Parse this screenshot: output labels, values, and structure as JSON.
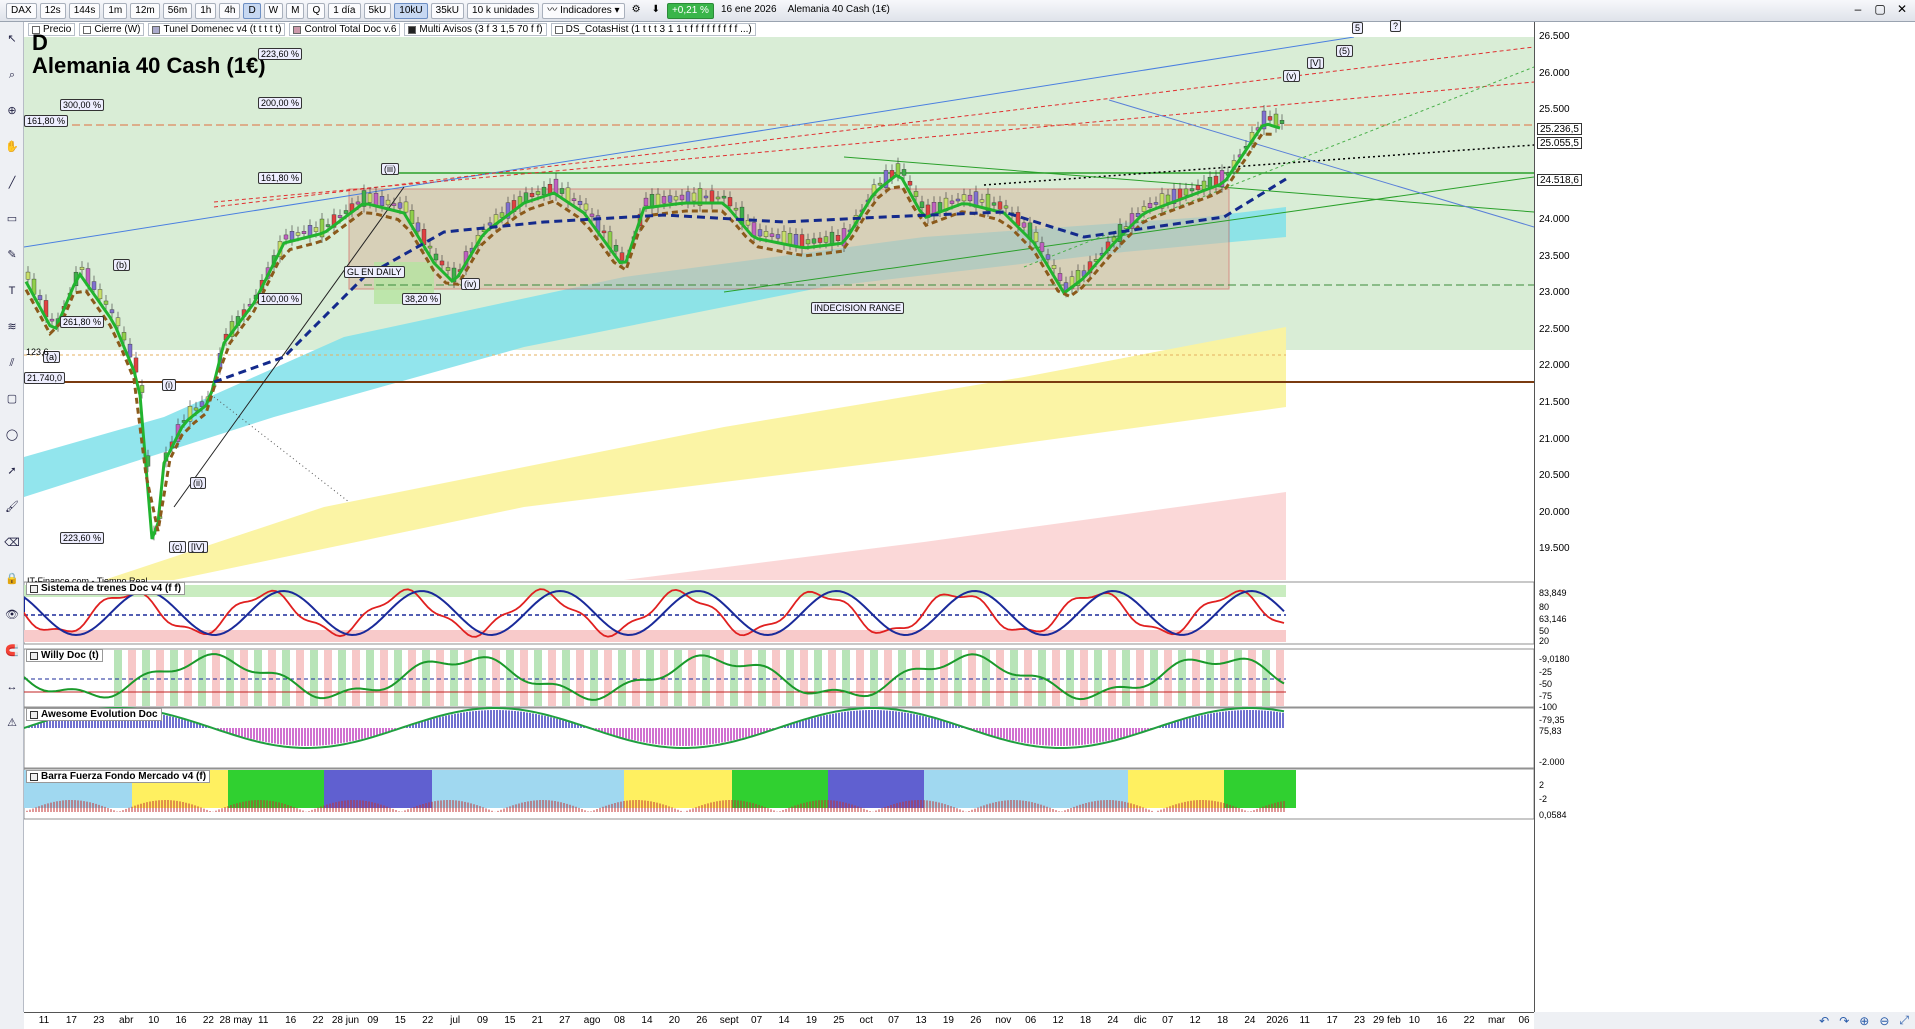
{
  "toolbar": {
    "symbol": "DAX",
    "intervals": [
      "12s",
      "144s",
      "1m",
      "12m",
      "56m",
      "1h",
      "4h",
      "D",
      "W",
      "M",
      "Q"
    ],
    "selected_interval": "D",
    "period": "1 día",
    "units": [
      "5kU",
      "10kU",
      "35kU"
    ],
    "selected_unit": "10kU",
    "quantity": "10 k unidades",
    "indicators_label": "Indicadores",
    "change": "+0,21 %",
    "date": "16 ene 2026",
    "instrument": "Alemania 40 Cash (1€)"
  },
  "legend": [
    "Precio",
    "Cierre (W)",
    "Tunel Domenec v4 (t t t t t)",
    "Control Total Doc v.6",
    "Multi Avisos (3 f 3 1,5 70 f f)",
    "DS_CotasHist (1 t t t 3 1 1 t f f f f f f f f f ...)"
  ],
  "chart": {
    "title": "D",
    "instrument": "Alemania 40 Cash (1€)",
    "source": "IT-Finance.com - Tiempo Real"
  },
  "price_axis": [
    "26.500",
    "26.000",
    "25.500",
    "25.000",
    "24.500",
    "24.000",
    "23.500",
    "23.000",
    "22.500",
    "22.000",
    "21.500",
    "21.000",
    "20.500",
    "20.000",
    "19.500"
  ],
  "price_badges": [
    {
      "text": "25.236,5",
      "color": "#000000"
    },
    {
      "text": "25.055,5",
      "color": "#000000"
    },
    {
      "text": "24.518,6",
      "color": "#000000"
    }
  ],
  "left_badges": [
    {
      "text": "21.740,0"
    },
    {
      "text": "123,6"
    }
  ],
  "fib_labels": [
    "223,60 %",
    "200,00 %",
    "300,00 %",
    "161,80 %",
    "161,80 %",
    "100,00 %",
    "38,20 %",
    "261,80 %",
    "223,60 %"
  ],
  "wave_labels": [
    "(iii)",
    "(iv)",
    "(b)",
    "(a)",
    "(i)",
    "(ii)",
    "(c)",
    "[IV]",
    "(v)",
    "[V]",
    "(5)",
    "5",
    "?"
  ],
  "notes": [
    "GL EN DAILY",
    "INDECISION RANGE"
  ],
  "panels": [
    {
      "title": "Sistema de trenes Doc v4 (f f)",
      "axis": [
        "83,849",
        "80",
        "63,146",
        "50",
        "20"
      ]
    },
    {
      "title": "Willy Doc (t)",
      "axis": [
        "-9,0180",
        "-25",
        "-50",
        "-75",
        "-100"
      ]
    },
    {
      "title": "Awesome Evolution Doc",
      "axis": [
        "-79,35",
        "75,83",
        "-2.000"
      ]
    },
    {
      "title": "Barra Fuerza Fondo Mercado v4 (f)",
      "axis": [
        "2",
        "-2",
        "0,0584"
      ]
    }
  ],
  "time_axis": [
    "11",
    "17",
    "23",
    "abr",
    "10",
    "16",
    "22",
    "28 may",
    "11",
    "16",
    "22",
    "28 jun",
    "09",
    "15",
    "22",
    "jul",
    "09",
    "15",
    "21",
    "27",
    "ago",
    "08",
    "14",
    "20",
    "26",
    "sept",
    "07",
    "14",
    "19",
    "25",
    "oct",
    "07",
    "13",
    "19",
    "26",
    "nov",
    "06",
    "12",
    "18",
    "24",
    "dic",
    "07",
    "12",
    "18",
    "24",
    "2026",
    "11",
    "17",
    "23",
    "29 feb",
    "10",
    "16",
    "22",
    "mar",
    "06"
  ],
  "colors": {
    "green_ma": "#21b42f",
    "red_ma": "#e01818",
    "navy_dash": "#142a8c",
    "brown_dash": "#8b5a1b",
    "cyan_band": "#7fe0ea",
    "yellow_band": "#fbf3a0",
    "pink_band": "#fbd4d4",
    "bg_green": "#d9edd6"
  }
}
